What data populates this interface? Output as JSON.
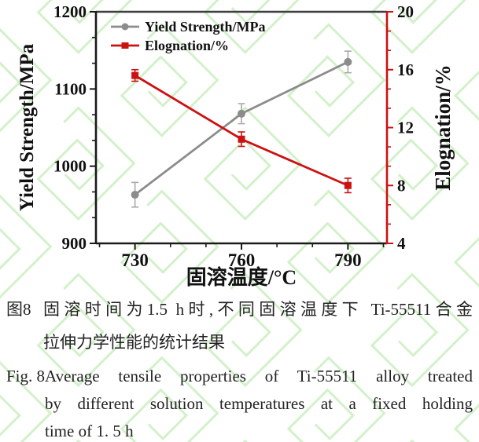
{
  "watermark": {
    "color": "#d2f1ca"
  },
  "chart_data": {
    "type": "line",
    "x": [
      730,
      760,
      790
    ],
    "xlabel": "固溶温度/°C",
    "ylabel_left": "Yield Strength/MPa",
    "ylabel_right": "Elognation/%",
    "xlim": [
      719,
      801
    ],
    "ylim_left": [
      900,
      1200
    ],
    "ylim_right": [
      4,
      20
    ],
    "x_axis": {
      "major_ticks": [
        730,
        760,
        790
      ],
      "minor_ticks": [
        720,
        740,
        750,
        770,
        780,
        800
      ]
    },
    "left_axis": {
      "major_ticks": [
        900,
        1000,
        1100,
        1200
      ],
      "minors_per_interval": 2
    },
    "right_axis": {
      "major_ticks": [
        4,
        8,
        12,
        16,
        20
      ],
      "minors_per_interval": 2
    },
    "grid": "off",
    "legend_position": "top-left-inside",
    "colors": {
      "axis": "#1a1a1a",
      "top_border": "#3d3d3d",
      "right_axis": "#cc1111",
      "text": "#111111"
    },
    "series": [
      {
        "name": "Yield Strength/MPa",
        "axis": "left",
        "color": "#8c8c8c",
        "error_color": "#a9a9a9",
        "marker": "circle",
        "values": [
          963,
          1068,
          1135
        ],
        "errors": [
          16,
          13,
          14
        ]
      },
      {
        "name": "Elognation/%",
        "axis": "right",
        "color": "#cc1111",
        "error_color": "#cc1111",
        "marker": "square",
        "values": [
          15.6,
          11.2,
          8.0
        ],
        "errors": [
          0.4,
          0.5,
          0.5
        ]
      }
    ]
  },
  "captions": {
    "zh_label": "图8",
    "zh_line1": "固溶时间为1.5 h时,不同固溶温度下 Ti-55511合金",
    "zh_line2": "拉伸力学性能的统计结果",
    "en_label": "Fig. 8",
    "en_line1": "Average tensile properties of Ti-55511 alloy treated",
    "en_line2": "by different solution temperatures at a fixed holding",
    "en_line3": "time of 1. 5 h"
  }
}
